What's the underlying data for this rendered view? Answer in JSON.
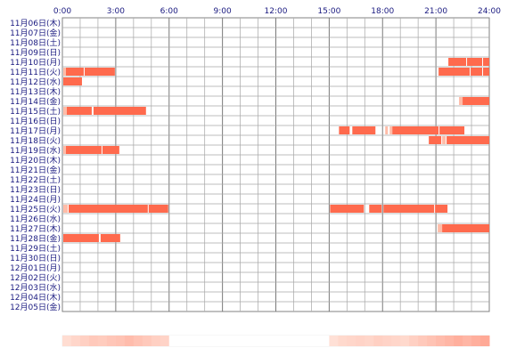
{
  "chart_data": {
    "type": "heatmap",
    "x_ticks": [
      "0:00",
      "3:00",
      "6:00",
      "9:00",
      "12:00",
      "15:00",
      "18:00",
      "21:00",
      "24:00"
    ],
    "xlim": [
      0,
      24
    ],
    "grid": true,
    "days": [
      "11月06日(木)",
      "11月07日(金)",
      "11月08日(土)",
      "11月09日(日)",
      "11月10日(月)",
      "11月11日(火)",
      "11月12日(水)",
      "11月13日(木)",
      "11月14日(金)",
      "11月15日(土)",
      "11月16日(日)",
      "11月17日(月)",
      "11月18日(火)",
      "11月19日(水)",
      "11月20日(木)",
      "11月21日(金)",
      "11月22日(土)",
      "11月23日(日)",
      "11月24日(月)",
      "11月25日(火)",
      "11月26日(水)",
      "11月27日(木)",
      "11月28日(金)",
      "11月29日(土)",
      "11月30日(日)",
      "12月01日(月)",
      "12月02日(火)",
      "12月03日(水)",
      "12月04日(木)",
      "12月05日(金)"
    ],
    "segments": [
      {
        "day": 4,
        "start": 21.7,
        "end": 22.7
      },
      {
        "day": 4,
        "start": 22.75,
        "end": 23.6
      },
      {
        "day": 4,
        "start": 23.65,
        "end": 24.0
      },
      {
        "day": 5,
        "start": 0.05,
        "end": 0.2
      },
      {
        "day": 5,
        "start": 0.2,
        "end": 1.2
      },
      {
        "day": 5,
        "start": 1.25,
        "end": 2.95
      },
      {
        "day": 5,
        "start": 21.15,
        "end": 22.9
      },
      {
        "day": 5,
        "start": 22.95,
        "end": 23.6
      },
      {
        "day": 5,
        "start": 23.65,
        "end": 24.0
      },
      {
        "day": 6,
        "start": 0.05,
        "end": 1.1
      },
      {
        "day": 8,
        "start": 22.3,
        "end": 22.5
      },
      {
        "day": 8,
        "start": 22.5,
        "end": 24.0
      },
      {
        "day": 9,
        "start": 0.05,
        "end": 0.25
      },
      {
        "day": 9,
        "start": 0.25,
        "end": 1.65
      },
      {
        "day": 9,
        "start": 1.75,
        "end": 4.7
      },
      {
        "day": 11,
        "start": 15.55,
        "end": 16.15
      },
      {
        "day": 11,
        "start": 16.3,
        "end": 17.6
      },
      {
        "day": 11,
        "start": 18.15,
        "end": 18.3
      },
      {
        "day": 11,
        "start": 18.4,
        "end": 18.55
      },
      {
        "day": 11,
        "start": 18.55,
        "end": 21.15
      },
      {
        "day": 11,
        "start": 21.2,
        "end": 22.6
      },
      {
        "day": 12,
        "start": 20.6,
        "end": 21.3
      },
      {
        "day": 12,
        "start": 21.35,
        "end": 21.55
      },
      {
        "day": 12,
        "start": 21.6,
        "end": 24.0
      },
      {
        "day": 13,
        "start": 0.05,
        "end": 0.2
      },
      {
        "day": 13,
        "start": 0.2,
        "end": 2.2
      },
      {
        "day": 13,
        "start": 2.25,
        "end": 3.2
      },
      {
        "day": 19,
        "start": 0.05,
        "end": 0.3
      },
      {
        "day": 19,
        "start": 0.35,
        "end": 4.8
      },
      {
        "day": 19,
        "start": 4.85,
        "end": 5.95
      },
      {
        "day": 19,
        "start": 15.05,
        "end": 16.95
      },
      {
        "day": 19,
        "start": 17.25,
        "end": 17.95
      },
      {
        "day": 19,
        "start": 18.05,
        "end": 20.9
      },
      {
        "day": 19,
        "start": 20.95,
        "end": 21.65
      },
      {
        "day": 21,
        "start": 21.1,
        "end": 21.35
      },
      {
        "day": 21,
        "start": 21.35,
        "end": 24.0
      },
      {
        "day": 22,
        "start": 0.05,
        "end": 2.05
      },
      {
        "day": 22,
        "start": 2.15,
        "end": 3.25
      }
    ],
    "frequency_strip": [
      0.15,
      0.2,
      0.25,
      0.3,
      0.28,
      0.32,
      0.35,
      0.4,
      0.35,
      0.3,
      0.25,
      0.22,
      0.0,
      0.0,
      0.0,
      0.0,
      0.0,
      0.0,
      0.0,
      0.0,
      0.0,
      0.0,
      0.0,
      0.0,
      0.0,
      0.0,
      0.0,
      0.0,
      0.0,
      0.0,
      0.12,
      0.18,
      0.2,
      0.22,
      0.2,
      0.25,
      0.22,
      0.2,
      0.18,
      0.25,
      0.3,
      0.35,
      0.4,
      0.45,
      0.5,
      0.45,
      0.5,
      0.55
    ],
    "colors": {
      "bar": "#ff6a4d",
      "bar_light": "#ffbca8",
      "grid": "#808080",
      "label": "#1a1a80",
      "strip_base": "#fff4f0"
    }
  }
}
